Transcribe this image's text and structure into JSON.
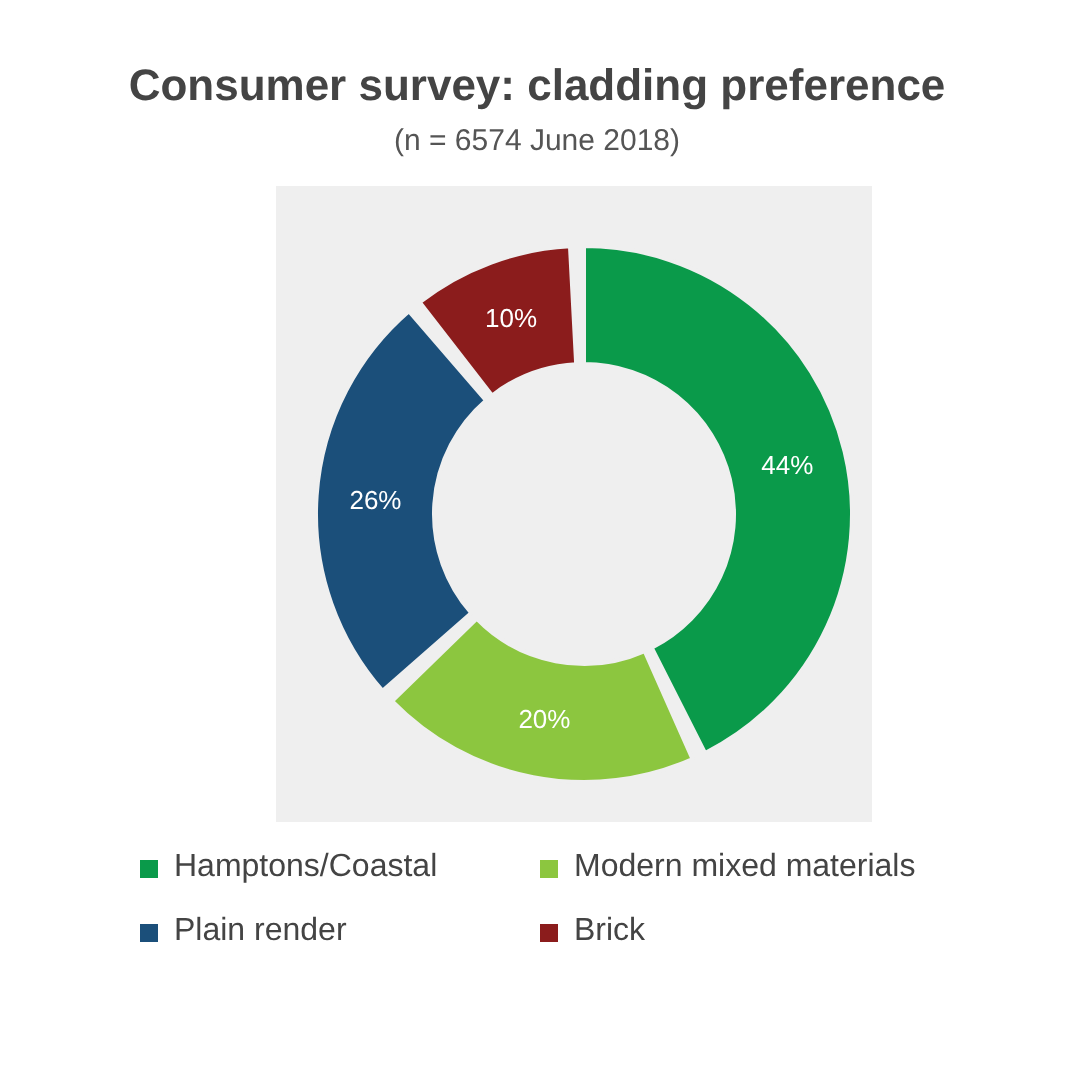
{
  "chart_data": {
    "type": "donut",
    "title": "Consumer survey: cladding preference",
    "subtitle": "(n = 6574 June 2018)",
    "categories": [
      "Hamptons/Coastal",
      "Modern mixed materials",
      "Plain render",
      "Brick"
    ],
    "values": [
      44,
      20,
      26,
      10
    ],
    "value_labels": [
      "44%",
      "20%",
      "26%",
      "10%"
    ],
    "colors": [
      "#0a9a4a",
      "#8cc63f",
      "#1b4f7a",
      "#8b1c1c"
    ],
    "legend": "bottom"
  }
}
